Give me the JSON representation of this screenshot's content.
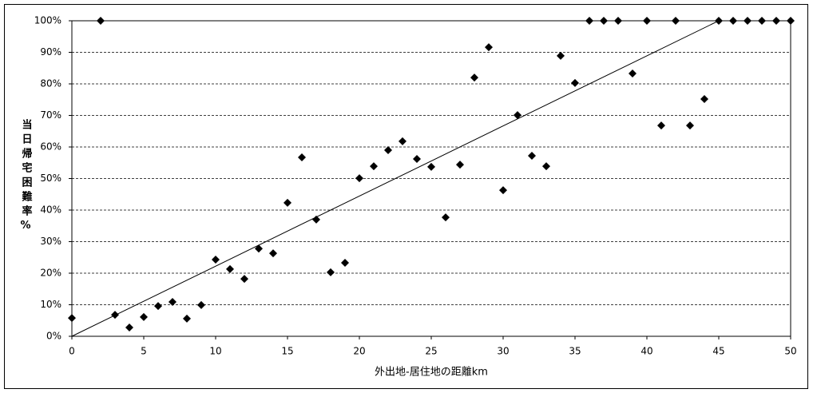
{
  "chart_data": {
    "type": "scatter",
    "x_label": "外出地-居住地の距離km",
    "y_label": "当日帰宅困難率%",
    "x": [
      0,
      2,
      3,
      4,
      5,
      6,
      7,
      8,
      9,
      10,
      11,
      12,
      13,
      14,
      15,
      16,
      17,
      18,
      19,
      20,
      21,
      22,
      23,
      24,
      25,
      26,
      27,
      28,
      29,
      30,
      31,
      32,
      33,
      34,
      35,
      36,
      37,
      38,
      39,
      40,
      41,
      42,
      43,
      44,
      45,
      46,
      47,
      48,
      49,
      50
    ],
    "values": [
      5.8,
      100,
      6.8,
      2.8,
      6.1,
      9.6,
      10.9,
      5.6,
      9.9,
      24.3,
      21.3,
      18.2,
      27.8,
      26.3,
      42.3,
      56.7,
      37.0,
      20.3,
      23.3,
      50.1,
      53.9,
      59.0,
      61.8,
      56.2,
      53.7,
      37.7,
      54.4,
      82.0,
      91.6,
      46.3,
      70.1,
      57.2,
      53.9,
      88.9,
      80.3,
      100,
      100,
      100,
      83.3,
      100,
      66.8,
      100,
      66.8,
      75.2,
      100,
      100,
      100,
      100,
      100,
      100
    ],
    "color": "#000000",
    "trendline": {
      "x": [
        0,
        45
      ],
      "values": [
        0,
        100
      ]
    },
    "xlim": [
      0,
      50
    ],
    "xticks": [
      0,
      5,
      10,
      15,
      20,
      25,
      30,
      35,
      40,
      45,
      50
    ],
    "ylim": [
      0,
      100
    ],
    "yticks": [
      {
        "value": 0,
        "label": "0%"
      },
      {
        "value": 10,
        "label": "10%"
      },
      {
        "value": 20,
        "label": "20%"
      },
      {
        "value": 30,
        "label": "30%"
      },
      {
        "value": 40,
        "label": "40%"
      },
      {
        "value": 50,
        "label": "50%"
      },
      {
        "value": 60,
        "label": "60%"
      },
      {
        "value": 70,
        "label": "70%"
      },
      {
        "value": 80,
        "label": "80%"
      },
      {
        "value": 90,
        "label": "90%"
      },
      {
        "value": 100,
        "label": "100%"
      }
    ],
    "grid": true
  }
}
